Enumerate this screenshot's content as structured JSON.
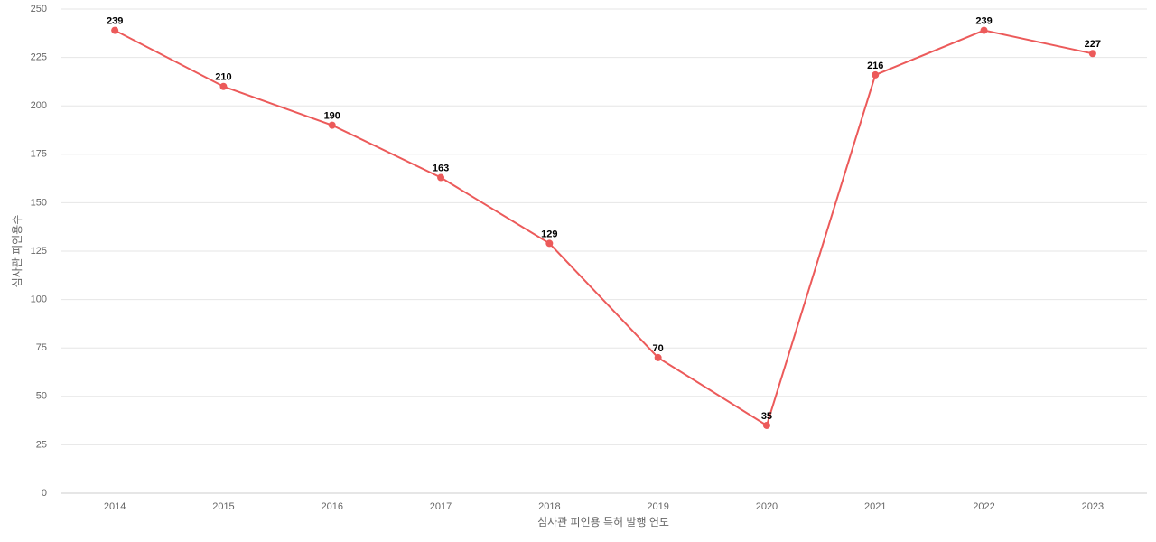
{
  "chart_data": {
    "type": "line",
    "x_label": "심사관 피인용 특허 발행 연도",
    "y_label": "심사관 피인용수",
    "categories": [
      "2014",
      "2015",
      "2016",
      "2017",
      "2018",
      "2019",
      "2020",
      "2021",
      "2022",
      "2023"
    ],
    "values": [
      239,
      210,
      190,
      163,
      129,
      70,
      35,
      216,
      239,
      227
    ],
    "color": "#ec5a5a",
    "ylim": [
      0,
      250
    ],
    "yticks": [
      0,
      25,
      50,
      75,
      100,
      125,
      150,
      175,
      200,
      225,
      250
    ],
    "grid": true
  }
}
